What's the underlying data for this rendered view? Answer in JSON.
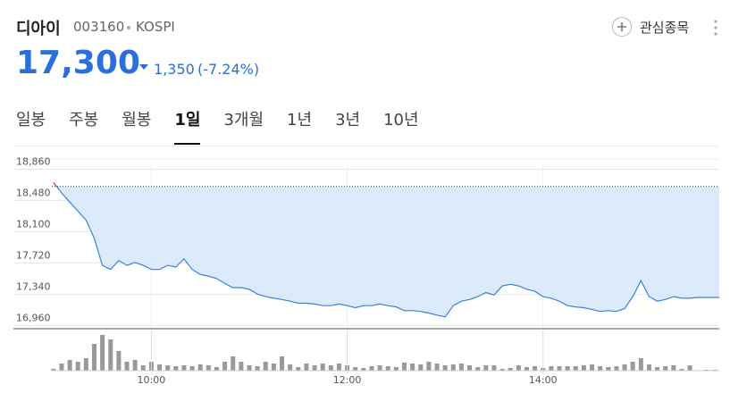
{
  "header": {
    "name": "디아이",
    "code": "003160",
    "market": "KOSPI",
    "watch": "관심종목",
    "price": "17,300",
    "change": "1,350",
    "change_pct": "(-7.24%)"
  },
  "tabs": [
    "일봉",
    "주봉",
    "월봉",
    "1일",
    "3개월",
    "1년",
    "3년",
    "10년"
  ],
  "chart_data": [
    {
      "type": "line",
      "color": "#3b7fe0",
      "up_color": "#e8342c",
      "fill": "#dcebfc",
      "reference_line": 18650,
      "x": [
        "09:00",
        "09:05",
        "09:10",
        "09:15",
        "09:20",
        "09:25",
        "09:30",
        "09:35",
        "09:40",
        "09:45",
        "09:50",
        "09:55",
        "10:00",
        "10:05",
        "10:10",
        "10:15",
        "10:20",
        "10:25",
        "10:30",
        "10:35",
        "10:40",
        "10:45",
        "10:50",
        "10:55",
        "11:00",
        "11:05",
        "11:10",
        "11:15",
        "11:20",
        "11:25",
        "11:30",
        "11:35",
        "11:40",
        "11:45",
        "11:50",
        "11:55",
        "12:00",
        "12:05",
        "12:10",
        "12:15",
        "12:20",
        "12:25",
        "12:30",
        "12:35",
        "12:40",
        "12:45",
        "12:50",
        "12:55",
        "13:00",
        "13:05",
        "13:10",
        "13:15",
        "13:20",
        "13:25",
        "13:30",
        "13:35",
        "13:40",
        "13:45",
        "13:50",
        "13:55",
        "14:00",
        "14:05",
        "14:10",
        "14:15",
        "14:20",
        "14:25",
        "14:30",
        "14:35",
        "14:40",
        "14:45",
        "14:50",
        "14:55",
        "15:00",
        "15:05",
        "15:10",
        "15:15",
        "15:20",
        "15:25",
        "15:30",
        "15:35",
        "15:40",
        "15:45"
      ],
      "values": [
        18700,
        18570,
        18460,
        18350,
        18240,
        18020,
        17690,
        17640,
        17750,
        17690,
        17725,
        17690,
        17640,
        17640,
        17690,
        17670,
        17770,
        17640,
        17580,
        17560,
        17530,
        17470,
        17420,
        17420,
        17400,
        17340,
        17310,
        17290,
        17275,
        17255,
        17230,
        17230,
        17220,
        17200,
        17200,
        17220,
        17200,
        17175,
        17200,
        17200,
        17220,
        17200,
        17185,
        17140,
        17140,
        17130,
        17110,
        17085,
        17065,
        17200,
        17255,
        17275,
        17310,
        17360,
        17330,
        17440,
        17460,
        17440,
        17400,
        17375,
        17310,
        17290,
        17255,
        17200,
        17185,
        17175,
        17155,
        17130,
        17140,
        17130,
        17165,
        17310,
        17505,
        17310,
        17255,
        17275,
        17310,
        17290,
        17290,
        17300,
        17300,
        17300
      ],
      "xlim": [
        "08:59",
        "15:48"
      ],
      "ylim": [
        16920,
        18930
      ],
      "yticks": [
        {
          "value": 16960,
          "label": "16,960"
        },
        {
          "value": 17340,
          "label": "17,340"
        },
        {
          "value": 17720,
          "label": "17,720"
        },
        {
          "value": 18100,
          "label": "18,100"
        },
        {
          "value": 18480,
          "label": "18,480"
        },
        {
          "value": 18860,
          "label": "18,860"
        }
      ],
      "grid": true
    },
    {
      "type": "bar",
      "color": "#999999",
      "x": [
        "09:00",
        "09:05",
        "09:10",
        "09:15",
        "09:20",
        "09:25",
        "09:30",
        "09:35",
        "09:40",
        "09:45",
        "09:50",
        "09:55",
        "10:00",
        "10:05",
        "10:10",
        "10:15",
        "10:20",
        "10:25",
        "10:30",
        "10:35",
        "10:40",
        "10:45",
        "10:50",
        "10:55",
        "11:00",
        "11:05",
        "11:10",
        "11:15",
        "11:20",
        "11:25",
        "11:30",
        "11:35",
        "11:40",
        "11:45",
        "11:50",
        "11:55",
        "12:00",
        "12:05",
        "12:10",
        "12:15",
        "12:20",
        "12:25",
        "12:30",
        "12:35",
        "12:40",
        "12:45",
        "12:50",
        "12:55",
        "13:00",
        "13:05",
        "13:10",
        "13:15",
        "13:20",
        "13:25",
        "13:30",
        "13:35",
        "13:40",
        "13:45",
        "13:50",
        "13:55",
        "14:00",
        "14:05",
        "14:10",
        "14:15",
        "14:20",
        "14:25",
        "14:30",
        "14:35",
        "14:40",
        "14:45",
        "14:50",
        "14:55",
        "15:00",
        "15:05",
        "15:10",
        "15:15",
        "15:20",
        "15:25",
        "15:30",
        "15:35",
        "15:40",
        "15:45"
      ],
      "values": [
        2000,
        8000,
        12000,
        10000,
        14000,
        30000,
        40000,
        35000,
        22000,
        10000,
        12000,
        6000,
        10000,
        7000,
        6000,
        5000,
        6000,
        5000,
        7000,
        6000,
        4000,
        10000,
        16000,
        10000,
        6000,
        5000,
        10000,
        8000,
        16000,
        7000,
        4000,
        8000,
        6000,
        8000,
        6000,
        8000,
        6000,
        4000,
        3000,
        5000,
        6000,
        5000,
        4000,
        9000,
        8000,
        7000,
        10000,
        8000,
        6000,
        7000,
        8000,
        6000,
        4000,
        6000,
        6000,
        2000,
        3000,
        6000,
        4000,
        5000,
        3000,
        5000,
        5000,
        5000,
        5000,
        6000,
        7000,
        5000,
        4000,
        5000,
        7000,
        10000,
        14000,
        7000,
        4000,
        5000,
        6000,
        2000,
        6000,
        0,
        1000,
        1000
      ],
      "xlim": [
        "08:59",
        "15:48"
      ],
      "ylim": [
        0,
        45000
      ],
      "xticks": [
        "10:00",
        "12:00",
        "14:00"
      ],
      "grid": true
    }
  ]
}
